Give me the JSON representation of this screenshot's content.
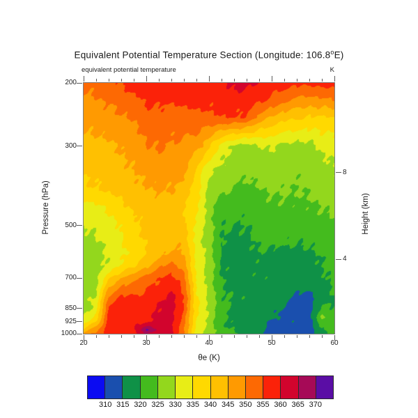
{
  "title": {
    "prefix": "Equivalent Potential Temperature Section (Longitude: 106.8",
    "degree_symbol": "o",
    "suffix": "E)"
  },
  "header": {
    "left_label": "equivalent potential temperature",
    "right_label": "K"
  },
  "axes": {
    "x": {
      "title": "θe (K)",
      "range": [
        20,
        60
      ],
      "major_ticks": [
        20,
        30,
        40,
        50,
        60
      ],
      "minor_tick_step": 2
    },
    "y_left": {
      "title": "Pressure (hPa)",
      "scale": "log",
      "range": [
        200,
        1000
      ],
      "ticks": [
        200,
        300,
        500,
        700,
        850,
        925,
        1000
      ]
    },
    "y_right": {
      "title": "Height (km)",
      "ticks": [
        {
          "label": "8",
          "pressure": 356
        },
        {
          "label": "4",
          "pressure": 620
        }
      ]
    }
  },
  "colorbar": {
    "labels": [
      310,
      315,
      320,
      325,
      330,
      335,
      340,
      345,
      350,
      355,
      360,
      365,
      370
    ]
  },
  "chart_data": {
    "type": "contour_fill",
    "title": "Equivalent Potential Temperature Section (Longitude: 106.8°E)",
    "subtitle_left": "equivalent potential temperature",
    "units": "K",
    "xlabel": "θe (K)",
    "ylabel": "Pressure (hPa)",
    "ylabel_right": "Height (km)",
    "x_range": [
      20,
      60
    ],
    "y_scale": "log",
    "contour_interval": 5,
    "levels": [
      310,
      315,
      320,
      325,
      330,
      335,
      340,
      345,
      350,
      355,
      360,
      365,
      370
    ],
    "colors": [
      "#0b0bf2",
      "#1a4fae",
      "#0f9147",
      "#44bb1e",
      "#93d71d",
      "#e8ed16",
      "#ffd900",
      "#ffc001",
      "#ff9a01",
      "#fd6903",
      "#fb2209",
      "#d2042d",
      "#a60a57",
      "#5a0da5"
    ],
    "x_values": [
      20,
      22,
      24,
      26,
      28,
      30,
      32,
      34,
      36,
      38,
      40,
      42,
      44,
      46,
      48,
      50,
      52,
      54,
      56,
      58,
      60
    ],
    "pressure_levels": [
      200,
      225,
      250,
      300,
      350,
      400,
      450,
      500,
      550,
      600,
      650,
      700,
      750,
      800,
      850,
      900,
      925,
      950,
      975,
      1000
    ],
    "values": [
      [
        351,
        352,
        353,
        355.5,
        357,
        357,
        357.5,
        357,
        357.5,
        358,
        358.5,
        359,
        361.5,
        362,
        359.5,
        358,
        357,
        356.5,
        356.5,
        357,
        357
      ],
      [
        348,
        349.5,
        350.5,
        352,
        353.5,
        356,
        356,
        355.5,
        356,
        356.5,
        356,
        356.5,
        357,
        357,
        356,
        354,
        351,
        348,
        347.5,
        348,
        349
      ],
      [
        346.5,
        347.5,
        348.5,
        349,
        350.5,
        352.5,
        353,
        352.5,
        353,
        353.5,
        354,
        355,
        355,
        354.5,
        348,
        344,
        341.5,
        340.5,
        339.5,
        339.5,
        340
      ],
      [
        343,
        343.5,
        344,
        345.5,
        347,
        349.5,
        350.5,
        349.5,
        349,
        347.5,
        341,
        332.5,
        329,
        327.5,
        329.5,
        330.5,
        328.5,
        328,
        328,
        331,
        331.5
      ],
      [
        341,
        341.5,
        342,
        343.5,
        345,
        346.5,
        347.5,
        347,
        347.5,
        339,
        331,
        329,
        327,
        326.5,
        327,
        327,
        326.5,
        326,
        326.5,
        328,
        329.5
      ],
      [
        339,
        339.5,
        340.5,
        342,
        343.5,
        344.5,
        345.5,
        345,
        342.5,
        337,
        328.5,
        326,
        324,
        323,
        324.5,
        325.5,
        325.5,
        325,
        325.5,
        326.5,
        327.5
      ],
      [
        332.5,
        333.5,
        335.5,
        338,
        340.5,
        341.5,
        342.5,
        342.5,
        340,
        336,
        327.5,
        322,
        321.5,
        321,
        322.5,
        324,
        324,
        323.5,
        324,
        325,
        326
      ],
      [
        330.5,
        331,
        332.5,
        335.5,
        338.5,
        342,
        343.5,
        343.5,
        341,
        334.5,
        327,
        320.5,
        320,
        320,
        321.5,
        322.5,
        322.5,
        322,
        322.5,
        323.5,
        323.5
      ],
      [
        328,
        329.5,
        331.5,
        334.5,
        337.5,
        340.5,
        342.5,
        344,
        343.5,
        332.5,
        327.5,
        319.5,
        319,
        319,
        321,
        321.5,
        321,
        320.5,
        321,
        322,
        322.5
      ],
      [
        327.5,
        328.5,
        330.5,
        334,
        337,
        340,
        342.5,
        346,
        345.5,
        333.5,
        328,
        319.5,
        318.5,
        319,
        319.5,
        319,
        318.5,
        318.5,
        319,
        320.5,
        322
      ],
      [
        327,
        328,
        330.5,
        336,
        340,
        344.5,
        349,
        352.5,
        347.5,
        334,
        328.5,
        319.5,
        318.5,
        318.5,
        319,
        318.5,
        318,
        317.5,
        318,
        320,
        321.5
      ],
      [
        327,
        327.5,
        339,
        345,
        348.5,
        352,
        355,
        356.5,
        352,
        334,
        328,
        319.5,
        318.5,
        318.5,
        319.5,
        318.5,
        318,
        317.5,
        317.5,
        319,
        321
      ],
      [
        327.5,
        329,
        346,
        351,
        353,
        355,
        357,
        359.5,
        354,
        335,
        328.5,
        320.5,
        319,
        318.5,
        319,
        318,
        317.5,
        316.5,
        316,
        318,
        320.5
      ],
      [
        328,
        331,
        352,
        356.5,
        356,
        356.5,
        359,
        362,
        355,
        336,
        329,
        321,
        319.5,
        319,
        318.5,
        317.5,
        316.5,
        313.5,
        313,
        317,
        320
      ],
      [
        326,
        333,
        356,
        357,
        357.5,
        357,
        360.5,
        362.5,
        354.5,
        336,
        329.5,
        321,
        319.5,
        317.5,
        318.5,
        317,
        314.5,
        312.5,
        312.5,
        321,
        320
      ],
      [
        330.5,
        336,
        357,
        357.5,
        357,
        358,
        361,
        362.5,
        353,
        335,
        329,
        321.5,
        319,
        318,
        319,
        316,
        313.5,
        314,
        313.5,
        325.5,
        322.5
      ],
      [
        333,
        340,
        357.5,
        358,
        357.5,
        359,
        361.5,
        362,
        352,
        334.5,
        328.5,
        321,
        319,
        318.5,
        318.5,
        314,
        313,
        314.5,
        313,
        324,
        322
      ],
      [
        336.5,
        344,
        357.5,
        357.5,
        358.5,
        363.5,
        362,
        361.5,
        351.5,
        334,
        328,
        321,
        319.5,
        318,
        317.5,
        313.5,
        313,
        313.5,
        312.5,
        321,
        321.5
      ],
      [
        342,
        349,
        357,
        357.5,
        359,
        371,
        363.5,
        361,
        351,
        333.5,
        327.5,
        321.5,
        320,
        318,
        317,
        313,
        312.5,
        313,
        312,
        319.5,
        321
      ],
      [
        347,
        352,
        357,
        357,
        358.5,
        365.5,
        362.5,
        361,
        350.5,
        333.5,
        327,
        321.5,
        320.5,
        318.5,
        317,
        313,
        312.5,
        313,
        312,
        319,
        320.5
      ]
    ]
  }
}
